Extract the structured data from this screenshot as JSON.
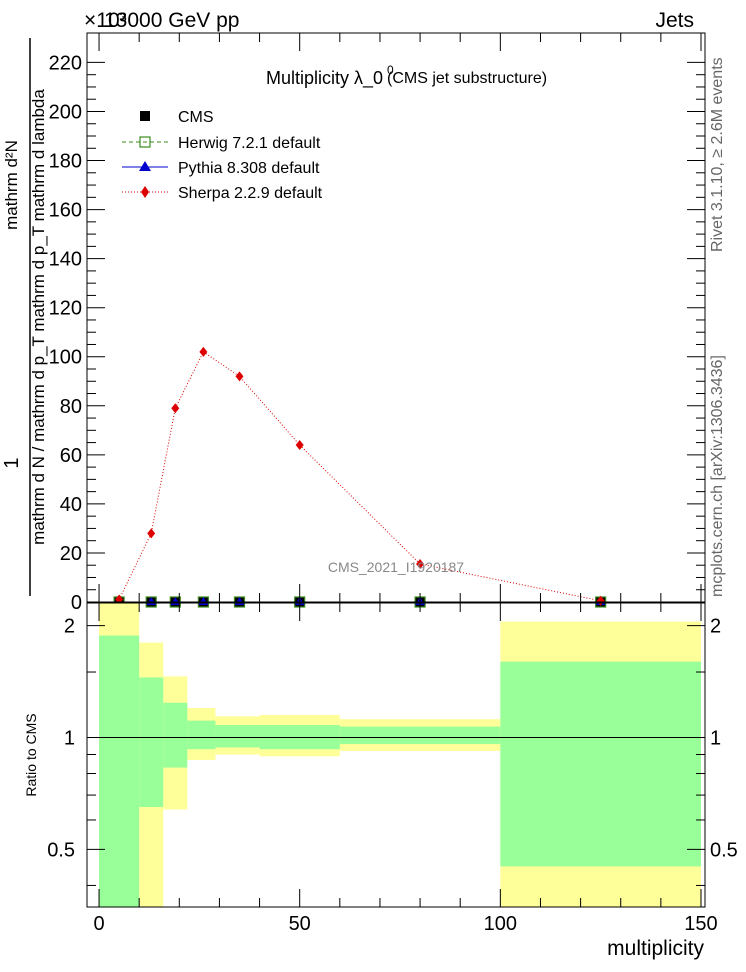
{
  "header": {
    "left": "13000 GeV pp",
    "exponent": "×10³",
    "right": "Jets"
  },
  "side_labels": {
    "rivet": "Rivet 3.1.10, ≥ 2.6M events",
    "mcplots": "mcplots.cern.ch [arXiv:1306.3436]"
  },
  "chart_data": [
    {
      "type": "line",
      "title": "Multiplicity  λ_0",
      "title_sup": "0",
      "subtitle": "(CMS jet substructure)",
      "ylabel_num": "1",
      "ylabel_den": "mathrm d N / mathrm d p_T mathrm d p_T mathrm d lambda",
      "ylabel_side": "mathrm d²N",
      "watermark": "CMS_2021_I1920187",
      "y_multiplier": "×10³",
      "xlim": [
        -3,
        151
      ],
      "ylim": [
        0,
        232
      ],
      "x_ticks": [
        0,
        50,
        100,
        150
      ],
      "y_ticks": [
        0,
        20,
        40,
        60,
        80,
        100,
        120,
        140,
        160,
        180,
        200,
        220
      ],
      "legend": [
        "CMS",
        "Herwig 7.2.1 default",
        "Pythia 8.308 default",
        "Sherpa 2.2.9 default"
      ],
      "legend_placement": "top-left",
      "series": [
        {
          "name": "CMS",
          "color": "#000000",
          "x": [
            5,
            13,
            19,
            26,
            35,
            50,
            80,
            125
          ],
          "y": [
            0,
            0,
            0,
            0,
            0,
            0,
            0,
            0
          ]
        },
        {
          "name": "Herwig 7.2.1 default",
          "color": "#3a8c1e",
          "x": [
            5,
            13,
            19,
            26,
            35,
            50,
            80,
            125
          ],
          "y": [
            0,
            0,
            0,
            0,
            0,
            0,
            0,
            0
          ]
        },
        {
          "name": "Pythia 8.308 default",
          "color": "#0000cc",
          "x": [
            5,
            13,
            19,
            26,
            35,
            50,
            80,
            125
          ],
          "y": [
            0,
            0,
            0,
            0,
            0,
            0,
            0,
            0
          ]
        },
        {
          "name": "Sherpa 2.2.9 default",
          "color": "#dd0000",
          "x": [
            5,
            13,
            19,
            26,
            35,
            50,
            80,
            125
          ],
          "y": [
            1,
            28,
            79,
            102,
            92,
            64,
            15.5,
            0.5
          ]
        }
      ]
    },
    {
      "type": "area",
      "ylabel": "Ratio to CMS",
      "xlabel": "multiplicity",
      "xlim": [
        -3,
        151
      ],
      "ylim": [
        0.35,
        2.3
      ],
      "x_ticks": [
        0,
        50,
        100,
        150
      ],
      "y_ticks": [
        0.5,
        1,
        2
      ],
      "y_tick_labels": [
        "0.5",
        "1",
        "2"
      ],
      "scale": "log",
      "reference": 1,
      "bins": [
        {
          "lo": 0,
          "hi": 10,
          "y1_lo": 0.35,
          "y1_hi": 2.3,
          "y2_lo": 0.35,
          "y2_hi": 1.88
        },
        {
          "lo": 10,
          "hi": 16,
          "y1_lo": 0.35,
          "y1_hi": 1.8,
          "y2_lo": 0.65,
          "y2_hi": 1.45
        },
        {
          "lo": 16,
          "hi": 22,
          "y1_lo": 0.64,
          "y1_hi": 1.46,
          "y2_lo": 0.83,
          "y2_hi": 1.24
        },
        {
          "lo": 22,
          "hi": 29,
          "y1_lo": 0.87,
          "y1_hi": 1.2,
          "y2_lo": 0.93,
          "y2_hi": 1.11
        },
        {
          "lo": 29,
          "hi": 40,
          "y1_lo": 0.9,
          "y1_hi": 1.14,
          "y2_lo": 0.94,
          "y2_hi": 1.08
        },
        {
          "lo": 40,
          "hi": 60,
          "y1_lo": 0.89,
          "y1_hi": 1.15,
          "y2_lo": 0.93,
          "y2_hi": 1.08
        },
        {
          "lo": 60,
          "hi": 100,
          "y1_lo": 0.92,
          "y1_hi": 1.12,
          "y2_lo": 0.96,
          "y2_hi": 1.07
        },
        {
          "lo": 100,
          "hi": 150,
          "y1_lo": 0.35,
          "y1_hi": 2.05,
          "y2_lo": 0.45,
          "y2_hi": 1.6
        }
      ]
    }
  ]
}
